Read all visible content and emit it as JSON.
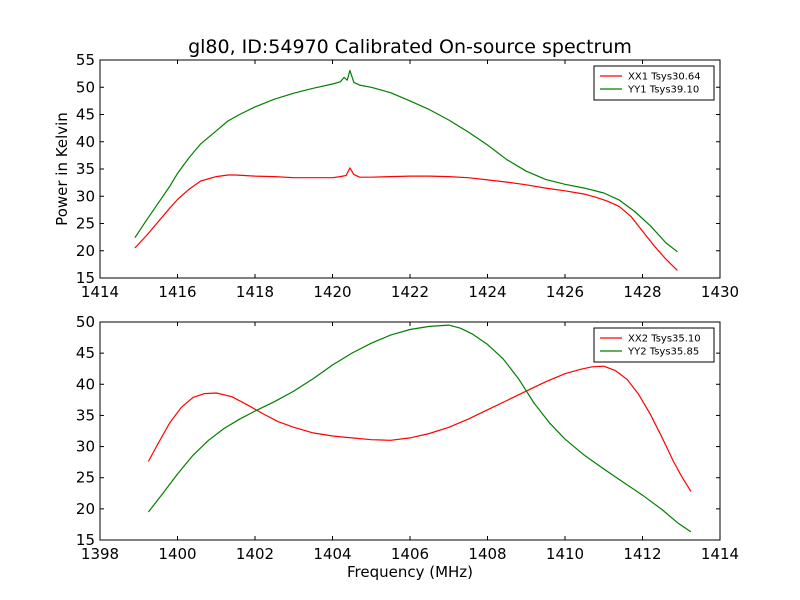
{
  "figure": {
    "title": "gl80, ID:54970 Calibrated On-source spectrum",
    "background": "#ffffff"
  },
  "chart_data": [
    {
      "type": "line",
      "title": "gl80, ID:54970 Calibrated On-source spectrum",
      "xlabel": "",
      "ylabel": "Power in Kelvin",
      "xlim": [
        1414,
        1430
      ],
      "ylim": [
        15,
        55
      ],
      "xticks": [
        1414,
        1416,
        1418,
        1420,
        1422,
        1424,
        1426,
        1428,
        1430
      ],
      "yticks": [
        15,
        20,
        25,
        30,
        35,
        40,
        45,
        50,
        55
      ],
      "grid": false,
      "legend_position": "top-right",
      "series": [
        {
          "name": "XX1 Tsys30.64",
          "color": "#ff0000",
          "x": [
            1414.9,
            1415.2,
            1415.5,
            1415.8,
            1416.0,
            1416.3,
            1416.6,
            1417.0,
            1417.3,
            1417.5,
            1418.0,
            1418.5,
            1419.0,
            1419.5,
            1420.0,
            1420.2,
            1420.35,
            1420.45,
            1420.55,
            1420.7,
            1421.0,
            1421.5,
            1422.0,
            1422.5,
            1423.0,
            1423.5,
            1424.0,
            1424.5,
            1425.0,
            1425.5,
            1426.0,
            1426.5,
            1426.8,
            1427.1,
            1427.4,
            1427.7,
            1428.0,
            1428.3,
            1428.6,
            1428.9
          ],
          "y": [
            20.5,
            22.8,
            25.3,
            27.8,
            29.4,
            31.3,
            32.8,
            33.6,
            33.9,
            33.9,
            33.7,
            33.6,
            33.4,
            33.4,
            33.4,
            33.6,
            33.8,
            35.2,
            34.0,
            33.5,
            33.5,
            33.6,
            33.7,
            33.7,
            33.6,
            33.4,
            33.0,
            32.6,
            32.1,
            31.5,
            31.0,
            30.4,
            29.8,
            29.1,
            28.1,
            26.3,
            23.6,
            20.9,
            18.5,
            16.4
          ]
        },
        {
          "name": "YY1 Tsys39.10",
          "color": "#008000",
          "x": [
            1414.9,
            1415.2,
            1415.5,
            1415.8,
            1416.0,
            1416.3,
            1416.6,
            1417.0,
            1417.3,
            1417.6,
            1418.0,
            1418.5,
            1419.0,
            1419.5,
            1420.0,
            1420.2,
            1420.3,
            1420.38,
            1420.45,
            1420.55,
            1420.7,
            1421.0,
            1421.5,
            1422.0,
            1422.5,
            1423.0,
            1423.5,
            1424.0,
            1424.5,
            1425.0,
            1425.5,
            1426.0,
            1426.5,
            1427.0,
            1427.4,
            1427.8,
            1428.2,
            1428.6,
            1428.9
          ],
          "y": [
            22.4,
            25.6,
            28.7,
            31.8,
            34.2,
            37.1,
            39.6,
            42.0,
            43.8,
            45.0,
            46.4,
            47.8,
            48.9,
            49.8,
            50.6,
            51.0,
            51.8,
            51.3,
            53.1,
            50.9,
            50.4,
            50.0,
            49.0,
            47.5,
            45.9,
            44.0,
            41.8,
            39.4,
            36.7,
            34.6,
            33.1,
            32.2,
            31.5,
            30.6,
            29.3,
            27.2,
            24.6,
            21.5,
            19.8
          ]
        }
      ]
    },
    {
      "type": "line",
      "title": "",
      "xlabel": "Frequency (MHz)",
      "ylabel": "",
      "xlim": [
        1398,
        1414
      ],
      "ylim": [
        15,
        50
      ],
      "xticks": [
        1398,
        1400,
        1402,
        1404,
        1406,
        1408,
        1410,
        1412,
        1414
      ],
      "yticks": [
        15,
        20,
        25,
        30,
        35,
        40,
        45,
        50
      ],
      "grid": false,
      "legend_position": "top-right",
      "series": [
        {
          "name": "XX2 Tsys35.10",
          "color": "#ff0000",
          "x": [
            1399.25,
            1399.5,
            1399.8,
            1400.1,
            1400.4,
            1400.7,
            1401.0,
            1401.4,
            1401.8,
            1402.2,
            1402.6,
            1403.0,
            1403.5,
            1404.0,
            1404.5,
            1405.0,
            1405.5,
            1406.0,
            1406.5,
            1407.0,
            1407.5,
            1408.0,
            1408.5,
            1409.0,
            1409.5,
            1410.0,
            1410.4,
            1410.7,
            1411.0,
            1411.3,
            1411.6,
            1411.9,
            1412.2,
            1412.5,
            1412.8,
            1413.0,
            1413.25
          ],
          "y": [
            27.6,
            30.5,
            33.8,
            36.3,
            37.9,
            38.5,
            38.6,
            38.0,
            36.7,
            35.3,
            34.0,
            33.1,
            32.2,
            31.7,
            31.4,
            31.1,
            31.0,
            31.4,
            32.1,
            33.1,
            34.4,
            35.9,
            37.4,
            38.9,
            40.4,
            41.7,
            42.4,
            42.8,
            42.9,
            42.2,
            40.8,
            38.4,
            35.2,
            31.5,
            27.6,
            25.3,
            22.8
          ]
        },
        {
          "name": "YY2 Tsys35.85",
          "color": "#008000",
          "x": [
            1399.25,
            1399.6,
            1400.0,
            1400.4,
            1400.8,
            1401.2,
            1401.6,
            1402.0,
            1402.5,
            1403.0,
            1403.5,
            1404.0,
            1404.5,
            1405.0,
            1405.5,
            1406.0,
            1406.5,
            1407.0,
            1407.3,
            1407.6,
            1408.0,
            1408.4,
            1408.8,
            1409.2,
            1409.6,
            1410.0,
            1410.5,
            1411.0,
            1411.5,
            1412.0,
            1412.5,
            1412.9,
            1413.25
          ],
          "y": [
            19.5,
            22.3,
            25.6,
            28.6,
            31.0,
            32.9,
            34.4,
            35.7,
            37.2,
            38.9,
            40.9,
            43.1,
            45.0,
            46.6,
            47.9,
            48.8,
            49.3,
            49.5,
            49.0,
            48.1,
            46.4,
            44.1,
            40.9,
            37.0,
            33.8,
            31.2,
            28.6,
            26.4,
            24.3,
            22.2,
            19.9,
            17.8,
            16.3
          ]
        }
      ]
    }
  ]
}
